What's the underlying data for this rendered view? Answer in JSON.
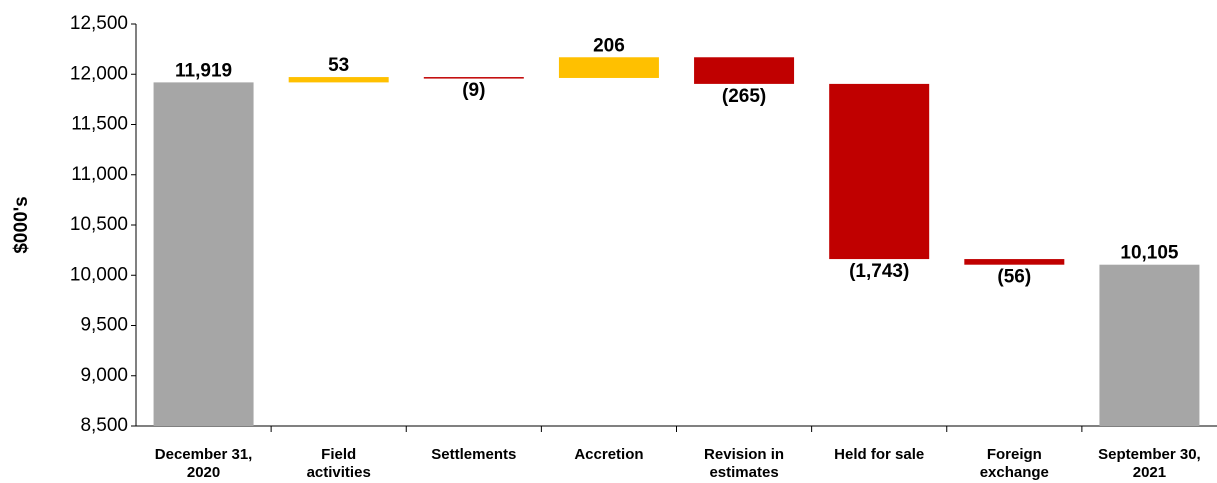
{
  "chart_data": {
    "type": "waterfall",
    "y_axis_label": "$000's",
    "categories": [
      "December 31,\n2020",
      "Field\nactivities",
      "Settlements",
      "Accretion",
      "Revision in\nestimates",
      "Held for sale",
      "Foreign\nexchange",
      "September 30,\n2021"
    ],
    "values": [
      11919,
      53,
      -9,
      206,
      -265,
      -1743,
      -56,
      10105
    ],
    "value_labels": [
      "11,919",
      "53",
      "(9)",
      "206",
      "(265)",
      "(1,743)",
      "(56)",
      "10,105"
    ],
    "colors": [
      "#a6a6a6",
      "#ffc000",
      "#c00000",
      "#ffc000",
      "#c00000",
      "#c00000",
      "#c00000",
      "#a6a6a6"
    ],
    "ylim": [
      8500,
      12500
    ],
    "yticks": [
      {
        "value": 8500,
        "label": "8,500"
      },
      {
        "value": 9000,
        "label": "9,000"
      },
      {
        "value": 9500,
        "label": "9,500"
      },
      {
        "value": 10000,
        "label": "10,000"
      },
      {
        "value": 10500,
        "label": "10,500"
      },
      {
        "value": 11000,
        "label": "11,000"
      },
      {
        "value": 11500,
        "label": "11,500"
      },
      {
        "value": 12000,
        "label": "12,000"
      },
      {
        "value": 12500,
        "label": "12,500"
      }
    ]
  }
}
